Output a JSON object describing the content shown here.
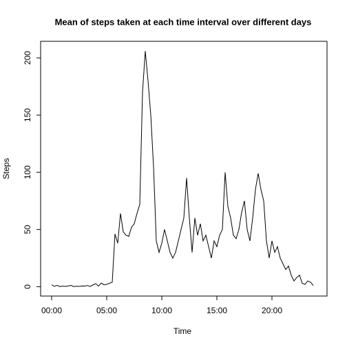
{
  "chart_data": {
    "type": "line",
    "title": "Mean of steps taken at each time interval over different days",
    "x_label": "Time",
    "y_label": "Steps",
    "x": [
      0,
      0.25,
      0.5,
      0.75,
      1,
      1.25,
      1.5,
      1.75,
      2,
      2.25,
      2.5,
      2.75,
      3,
      3.25,
      3.5,
      3.75,
      4,
      4.25,
      4.5,
      4.75,
      5,
      5.25,
      5.5,
      5.75,
      6,
      6.25,
      6.5,
      6.75,
      7,
      7.25,
      7.5,
      7.75,
      8,
      8.25,
      8.5,
      8.75,
      9,
      9.25,
      9.5,
      9.75,
      10,
      10.25,
      10.5,
      10.75,
      11,
      11.25,
      11.5,
      11.75,
      12,
      12.25,
      12.5,
      12.75,
      13,
      13.25,
      13.5,
      13.75,
      14,
      14.25,
      14.5,
      14.75,
      15,
      15.25,
      15.5,
      15.75,
      16,
      16.25,
      16.5,
      16.75,
      17,
      17.25,
      17.5,
      17.75,
      18,
      18.25,
      18.5,
      18.75,
      19,
      19.25,
      19.5,
      19.75,
      20,
      20.25,
      20.5,
      20.75,
      21,
      21.25,
      21.5,
      21.75,
      22,
      22.25,
      22.5,
      22.75,
      23,
      23.25,
      23.5,
      23.75
    ],
    "series": [
      {
        "name": "Steps",
        "color": "#000000",
        "values": [
          1.7,
          0.3,
          1.2,
          0.1,
          0.5,
          0.2,
          0.6,
          1.1,
          0.1,
          0.4,
          0.2,
          0.6,
          0.5,
          1.0,
          0.2,
          1.5,
          2.6,
          0.5,
          3.2,
          1.6,
          2.0,
          3.0,
          3.8,
          46,
          38,
          64,
          48,
          45,
          44,
          52,
          55,
          64,
          72,
          170,
          206,
          180,
          150,
          105,
          40,
          30,
          38,
          50,
          40,
          30,
          25,
          30,
          40,
          50,
          60,
          95,
          60,
          30,
          60,
          45,
          55,
          40,
          45,
          35,
          25,
          40,
          35,
          45,
          50,
          100,
          70,
          60,
          45,
          42,
          50,
          65,
          75,
          50,
          40,
          60,
          85,
          99,
          85,
          75,
          40,
          25,
          40,
          30,
          35,
          25,
          20,
          15,
          18,
          10,
          5,
          8,
          10,
          3,
          2,
          5,
          4,
          1
        ]
      }
    ],
    "xlim": [
      -1,
      25
    ],
    "ylim": [
      -8.2,
      214.5
    ],
    "xticks": [
      {
        "value": 0,
        "label": "00:00"
      },
      {
        "value": 5,
        "label": "05:00"
      },
      {
        "value": 10,
        "label": "10:00"
      },
      {
        "value": 15,
        "label": "15:00"
      },
      {
        "value": 20,
        "label": "20:00"
      }
    ],
    "yticks": [
      0,
      50,
      100,
      150,
      200
    ]
  }
}
